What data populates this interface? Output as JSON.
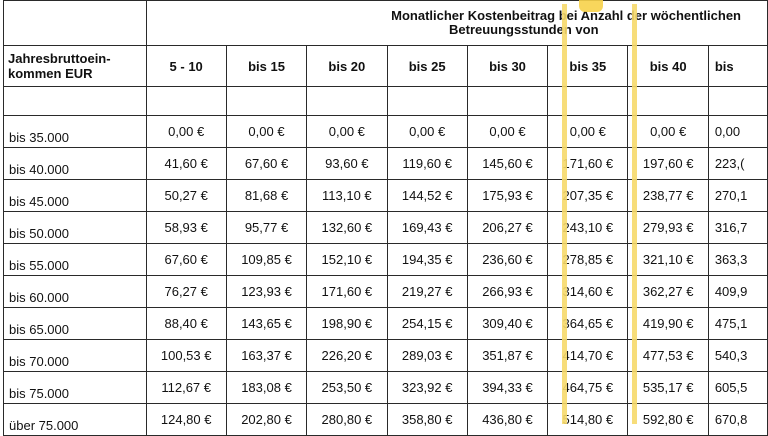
{
  "header": {
    "group_line1": "Monatlicher Kostenbeitrag bei Anzahl der wöchentlichen",
    "group_line2": "Betreuungsstunden von",
    "row_header": "Jahresbruttoein-kommen EUR",
    "columns": [
      "5 - 10",
      "bis 15",
      "bis 20",
      "bis 25",
      "bis 30",
      "bis 35",
      "bis 40",
      "bis"
    ]
  },
  "rows": [
    {
      "label": "bis 35.000",
      "values": [
        "0,00 €",
        "0,00 €",
        "0,00 €",
        "0,00 €",
        "0,00 €",
        "0,00 €",
        "0,00 €",
        "0,00"
      ]
    },
    {
      "label": "bis 40.000",
      "values": [
        "41,60 €",
        "67,60 €",
        "93,60 €",
        "119,60 €",
        "145,60 €",
        "171,60 €",
        "197,60 €",
        "223,("
      ]
    },
    {
      "label": "bis 45.000",
      "values": [
        "50,27 €",
        "81,68 €",
        "113,10 €",
        "144,52 €",
        "175,93 €",
        "207,35 €",
        "238,77 €",
        "270,1"
      ]
    },
    {
      "label": "bis 50.000",
      "values": [
        "58,93 €",
        "95,77 €",
        "132,60 €",
        "169,43 €",
        "206,27 €",
        "243,10 €",
        "279,93 €",
        "316,7"
      ]
    },
    {
      "label": "bis 55.000",
      "values": [
        "67,60 €",
        "109,85 €",
        "152,10 €",
        "194,35 €",
        "236,60 €",
        "278,85 €",
        "321,10 €",
        "363,3"
      ]
    },
    {
      "label": "bis 60.000",
      "values": [
        "76,27 €",
        "123,93 €",
        "171,60 €",
        "219,27 €",
        "266,93 €",
        "314,60 €",
        "362,27 €",
        "409,9"
      ]
    },
    {
      "label": "bis 65.000",
      "values": [
        "88,40 €",
        "143,65 €",
        "198,90 €",
        "254,15 €",
        "309,40 €",
        "364,65 €",
        "419,90 €",
        "475,1"
      ]
    },
    {
      "label": "bis 70.000",
      "values": [
        "100,53 €",
        "163,37 €",
        "226,20 €",
        "289,03 €",
        "351,87 €",
        "414,70 €",
        "477,53 €",
        "540,3"
      ]
    },
    {
      "label": "bis 75.000",
      "values": [
        "112,67 €",
        "183,08 €",
        "253,50 €",
        "323,92 €",
        "394,33 €",
        "464,75 €",
        "535,17 €",
        "605,5"
      ]
    },
    {
      "label": "über 75.000",
      "values": [
        "124,80 €",
        "202,80 €",
        "280,80 €",
        "358,80 €",
        "436,80 €",
        "514,80 €",
        "592,80 €",
        "670,8"
      ]
    }
  ],
  "highlight": {
    "column": "bis 35",
    "color": "#f6d96b"
  }
}
